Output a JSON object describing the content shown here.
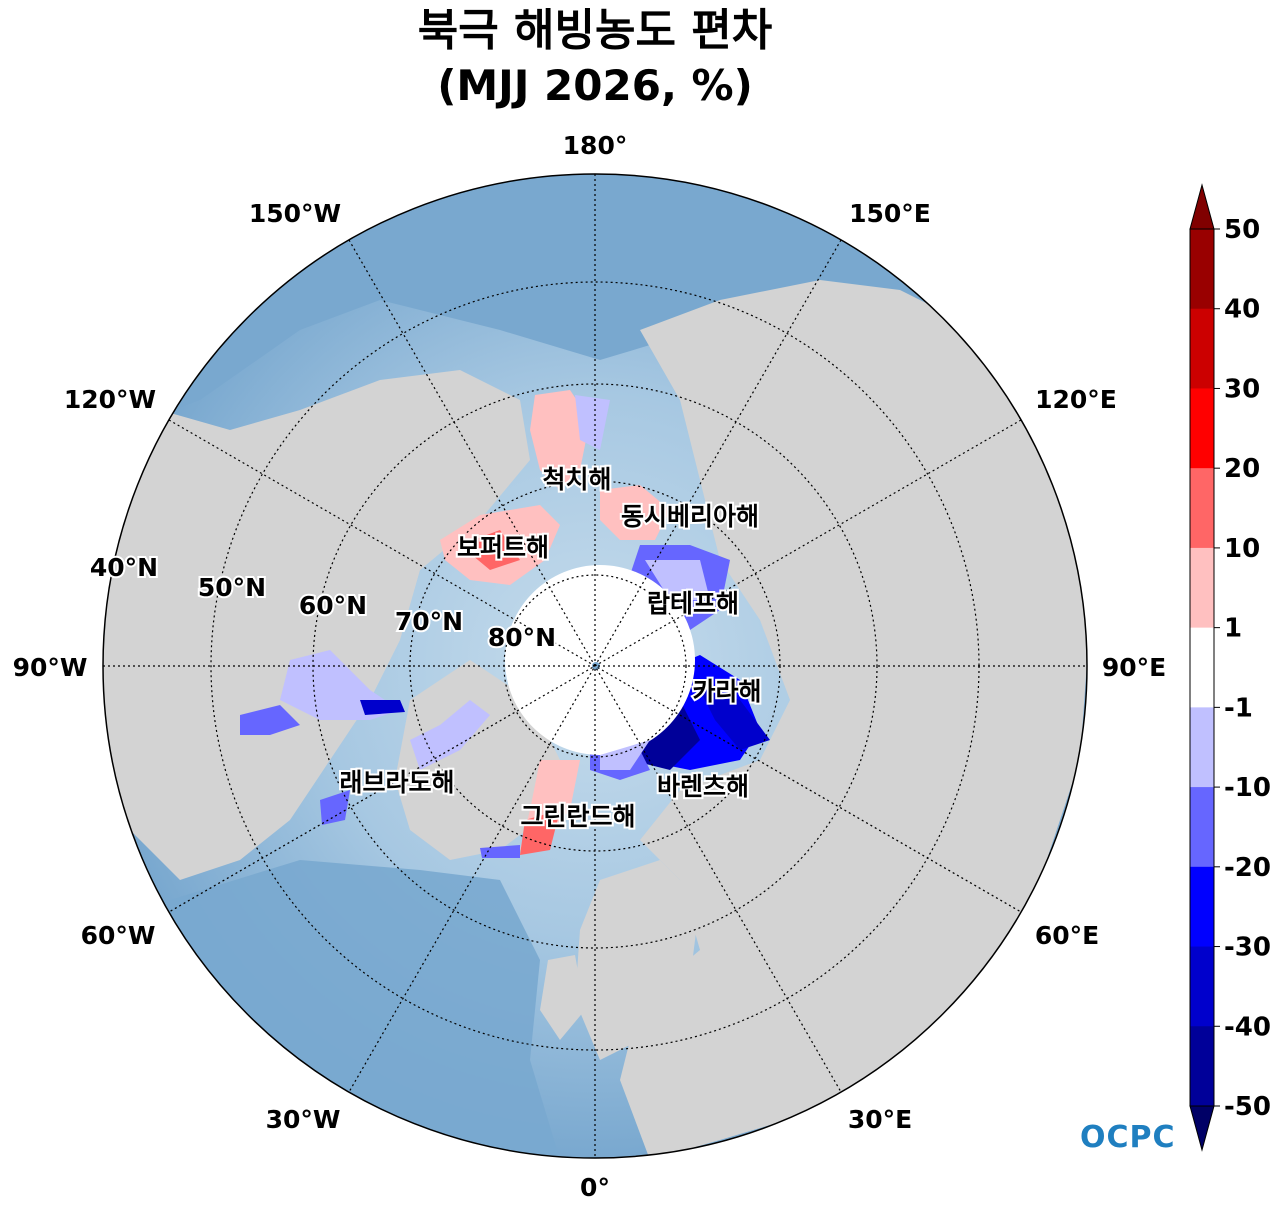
{
  "title": {
    "line1": "북극 해빙농도 편차",
    "line2": "(MJJ 2026, %)"
  },
  "map": {
    "projection": "north-polar-stereographic",
    "longitude_labels": [
      {
        "text": "180°",
        "lon": 180
      },
      {
        "text": "150°E",
        "lon": 150
      },
      {
        "text": "120°E",
        "lon": 120
      },
      {
        "text": "90°E",
        "lon": 90
      },
      {
        "text": "60°E",
        "lon": 60
      },
      {
        "text": "30°E",
        "lon": 30
      },
      {
        "text": "0°",
        "lon": 0
      },
      {
        "text": "30°W",
        "lon": -30
      },
      {
        "text": "60°W",
        "lon": -60
      },
      {
        "text": "90°W",
        "lon": -90
      },
      {
        "text": "120°W",
        "lon": -120
      },
      {
        "text": "150°W",
        "lon": -150
      }
    ],
    "latitude_labels": [
      {
        "text": "40°N",
        "lat": 40
      },
      {
        "text": "50°N",
        "lat": 50
      },
      {
        "text": "60°N",
        "lat": 60
      },
      {
        "text": "70°N",
        "lat": 70
      },
      {
        "text": "80°N",
        "lat": 80
      }
    ],
    "seas": [
      {
        "name": "척치해"
      },
      {
        "name": "동시베리아해"
      },
      {
        "name": "보퍼트해"
      },
      {
        "name": "랍테프해"
      },
      {
        "name": "카라해"
      },
      {
        "name": "바렌츠해"
      },
      {
        "name": "래브라도해"
      },
      {
        "name": "그린란드해"
      }
    ],
    "colors": {
      "land": "#d3d3d3",
      "ocean_deep": "#79a8cf",
      "ocean_light": "#c6dcec",
      "ice_neutral": "#ffffff"
    }
  },
  "colorbar": {
    "ticks": [
      "50",
      "40",
      "30",
      "20",
      "10",
      "1",
      "-1",
      "-10",
      "-20",
      "-30",
      "-40",
      "-50"
    ],
    "colors_top_to_bottom": [
      "#990000",
      "#cc0000",
      "#ff0000",
      "#ff6666",
      "#ffc0c0",
      "#ffffff",
      "#c0c0ff",
      "#6666ff",
      "#0000ff",
      "#0000cc",
      "#000099"
    ],
    "over_color": "#800000",
    "under_color": "#000066"
  },
  "logo": {
    "text": "OCPC"
  }
}
